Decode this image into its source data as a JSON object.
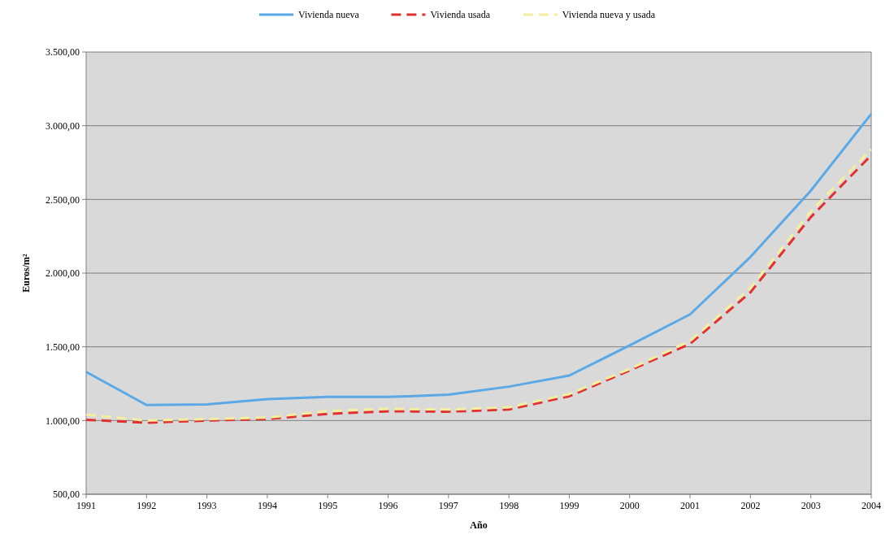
{
  "chart_data": {
    "type": "line",
    "xlabel": "Año",
    "ylabel": "Euros/m²",
    "categories": [
      "1991",
      "1992",
      "1993",
      "1994",
      "1995",
      "1996",
      "1997",
      "1998",
      "1999",
      "2000",
      "2001",
      "2002",
      "2003",
      "2004"
    ],
    "series": [
      {
        "name": "Vivienda nueva",
        "color": "#5aa9e6",
        "line_style": "solid",
        "values": [
          1330,
          1105,
          1110,
          1145,
          1160,
          1160,
          1175,
          1230,
          1305,
          1510,
          1720,
          2110,
          2560,
          3080
        ]
      },
      {
        "name": "Vivienda usada",
        "color": "#e03030",
        "line_style": "dashed",
        "values": [
          1005,
          985,
          1000,
          1010,
          1045,
          1063,
          1060,
          1075,
          1165,
          1340,
          1520,
          1870,
          2380,
          2800
        ]
      },
      {
        "name": "Vivienda nueva y usada",
        "color": "#f4eea0",
        "line_style": "dashed",
        "values": [
          1040,
          1000,
          1010,
          1020,
          1065,
          1080,
          1075,
          1090,
          1180,
          1350,
          1540,
          1900,
          2420,
          2840
        ]
      }
    ],
    "ylim": [
      500,
      3500
    ],
    "yticks": [
      {
        "value": 500,
        "label": "500,00"
      },
      {
        "value": 1000,
        "label": "1.000,00"
      },
      {
        "value": 1500,
        "label": "1.500,00"
      },
      {
        "value": 2000,
        "label": "2.000,00"
      },
      {
        "value": 2500,
        "label": "2.500,00"
      },
      {
        "value": 3000,
        "label": "3.000,00"
      },
      {
        "value": 3500,
        "label": "3.500,00"
      }
    ],
    "grid": "y",
    "legend": "top",
    "marker": "none"
  }
}
